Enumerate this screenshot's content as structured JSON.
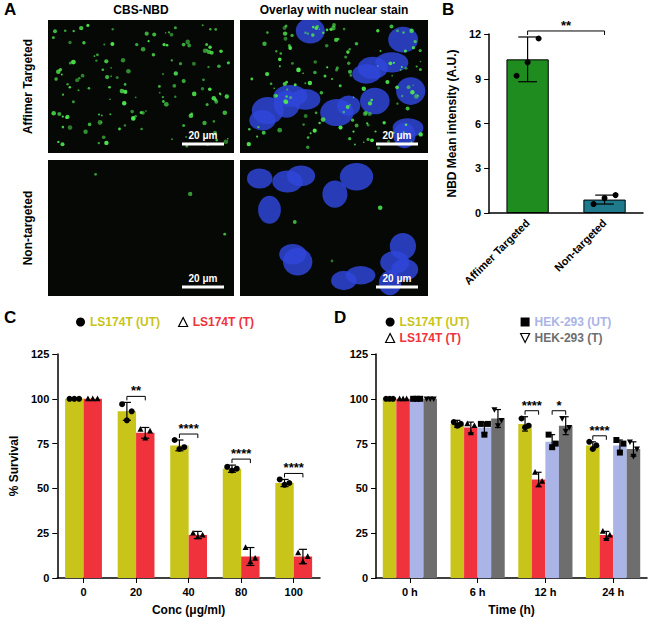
{
  "panel_labels": [
    "A",
    "B",
    "C",
    "D"
  ],
  "images": {
    "columns": [
      "CBS-NBD",
      "Overlay with nuclear stain"
    ],
    "rows": [
      "Affimer Targeted",
      "Non-targeted"
    ],
    "scale_bar": "20 μm"
  },
  "chart_data": [
    {
      "type": "bar",
      "y_label": "NBD Mean intensity (A.U.)",
      "categories": [
        "Affimer Targeted",
        "Non-targeted"
      ],
      "values": [
        10.3,
        0.9
      ],
      "errors": [
        1.5,
        0.3
      ],
      "points": [
        [
          9.2,
          10.1,
          11.7
        ],
        [
          0.6,
          1.0,
          1.2
        ]
      ],
      "colors": [
        "#1e8c1e",
        "#1f7a8c"
      ],
      "marker": "circle",
      "ylim": [
        0,
        12
      ],
      "yticks": [
        0,
        3,
        6,
        9,
        12
      ],
      "grid": false,
      "significance": [
        {
          "text": "**",
          "categories": [
            "Affimer Targeted",
            "Non-targeted"
          ]
        }
      ]
    },
    {
      "type": "bar",
      "x_label": "Conc (μg/ml)",
      "y_label": "% Survival",
      "categories": [
        "0",
        "20",
        "40",
        "80",
        "100"
      ],
      "ylim": [
        0,
        125
      ],
      "yticks": [
        0,
        25,
        50,
        75,
        100,
        125
      ],
      "grid": false,
      "legend": "top",
      "series": [
        {
          "name": "LS174T (UT)",
          "color": "#c8c41a",
          "marker": "circle",
          "values": [
            100,
            93,
            74,
            61,
            53
          ],
          "errors": [
            0,
            5,
            3,
            2,
            2
          ],
          "points": [
            [
              100,
              100,
              100
            ],
            [
              97,
              88,
              93
            ],
            [
              77,
              72,
              73
            ],
            [
              62,
              60,
              61
            ],
            [
              55,
              52,
              53
            ]
          ]
        },
        {
          "name": "LS174T (T)",
          "color": "#f0323c",
          "marker": "triangle",
          "values": [
            100,
            81,
            24,
            12,
            12
          ],
          "errors": [
            0,
            3,
            2,
            5,
            4
          ],
          "points": [
            [
              100,
              100,
              100
            ],
            [
              83,
              78,
              82
            ],
            [
              25,
              23,
              24
            ],
            [
              17,
              9,
              11
            ],
            [
              14,
              9,
              12
            ]
          ]
        }
      ],
      "significance": [
        {
          "text": "**",
          "category": "20",
          "series": [
            "LS174T (UT)",
            "LS174T (T)"
          ]
        },
        {
          "text": "****",
          "category": "40",
          "series": [
            "LS174T (UT)",
            "LS174T (T)"
          ]
        },
        {
          "text": "****",
          "category": "80",
          "series": [
            "LS174T (UT)",
            "LS174T (T)"
          ]
        },
        {
          "text": "****",
          "category": "100",
          "series": [
            "LS174T (UT)",
            "LS174T (T)"
          ]
        }
      ]
    },
    {
      "type": "bar",
      "x_label": "Time (h)",
      "categories": [
        "0 h",
        "6 h",
        "12 h",
        "24 h"
      ],
      "ylim": [
        0,
        125
      ],
      "yticks": [
        0,
        25,
        50,
        75,
        100,
        125
      ],
      "grid": false,
      "legend": "top",
      "series": [
        {
          "name": "LS174T (UT)",
          "color": "#c8c41a",
          "marker": "circle",
          "values": [
            100,
            86,
            86,
            74
          ],
          "errors": [
            0,
            2,
            4,
            2
          ],
          "points": [
            [
              100,
              100,
              100
            ],
            [
              87,
              85,
              86
            ],
            [
              89,
              84,
              85
            ],
            [
              76,
              72,
              74
            ]
          ]
        },
        {
          "name": "LS174T (T)",
          "color": "#f0323c",
          "marker": "triangle",
          "values": [
            100,
            84,
            55,
            24
          ],
          "errors": [
            0,
            3,
            4,
            2
          ],
          "points": [
            [
              100,
              100,
              100
            ],
            [
              86,
              81,
              85
            ],
            [
              59,
              52,
              54
            ],
            [
              26,
              22,
              24
            ]
          ]
        },
        {
          "name": "HEK-293 (UT)",
          "color": "#aab4e6",
          "marker": "square",
          "values": [
            100,
            84,
            76,
            74
          ],
          "errors": [
            0,
            3,
            4,
            3
          ],
          "points": [
            [
              100,
              100,
              100
            ],
            [
              86,
              80,
              86
            ],
            [
              80,
              73,
              75
            ],
            [
              77,
              70,
              75
            ]
          ]
        },
        {
          "name": "HEK-293 (T)",
          "color": "#6e6e6e",
          "marker": "triangle-down",
          "values": [
            100,
            89,
            85,
            72
          ],
          "errors": [
            0,
            5,
            5,
            4
          ],
          "points": [
            [
              100,
              100,
              100
            ],
            [
              94,
              85,
              88
            ],
            [
              89,
              82,
              84
            ],
            [
              76,
              68,
              72
            ]
          ]
        }
      ],
      "significance": [
        {
          "text": "****",
          "category": "12 h",
          "series": [
            "LS174T (UT)",
            "LS174T (T)"
          ]
        },
        {
          "text": "*",
          "category": "12 h",
          "series": [
            "HEK-293 (UT)",
            "HEK-293 (T)"
          ]
        },
        {
          "text": "****",
          "category": "24 h",
          "series": [
            "LS174T (UT)",
            "LS174T (T)"
          ]
        }
      ]
    }
  ]
}
